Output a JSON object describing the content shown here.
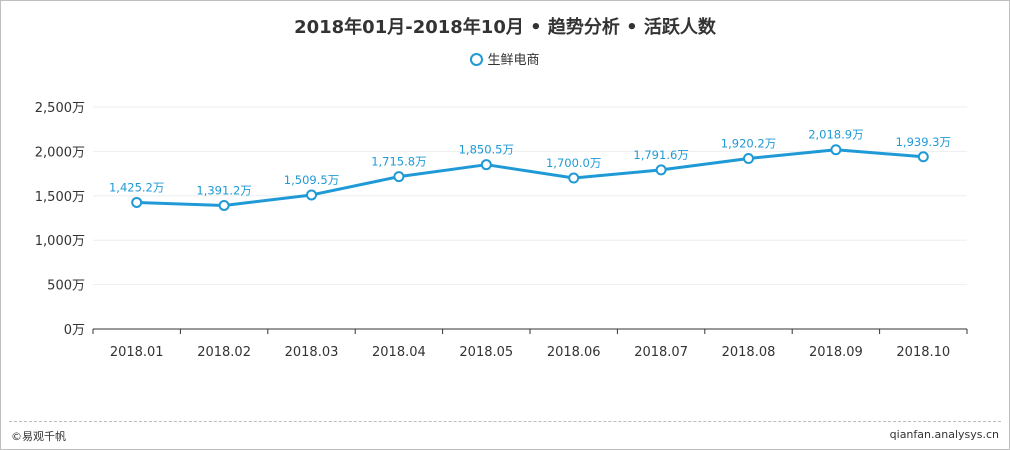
{
  "footer": {
    "left": "©易观千帆",
    "right": "qianfan.analysys.cn"
  },
  "colors": {
    "series": "#1f9ad6",
    "grid": "#eeeeee",
    "axis": "#333333",
    "text": "#333333"
  },
  "chart_data": {
    "type": "line",
    "title": "2018年01月-2018年10月 • 趋势分析 • 活跃人数",
    "xlabel": "",
    "ylabel": "",
    "categories": [
      "2018.01",
      "2018.02",
      "2018.03",
      "2018.04",
      "2018.05",
      "2018.06",
      "2018.07",
      "2018.08",
      "2018.09",
      "2018.10"
    ],
    "series": [
      {
        "name": "生鲜电商",
        "values": [
          1425.2,
          1391.2,
          1509.5,
          1715.8,
          1850.5,
          1700.0,
          1791.6,
          1920.2,
          2018.9,
          1939.3
        ],
        "labels": [
          "1,425.2万",
          "1,391.2万",
          "1,509.5万",
          "1,715.8万",
          "1,850.5万",
          "1,700.0万",
          "1,791.6万",
          "1,920.2万",
          "2,018.9万",
          "1,939.3万"
        ]
      }
    ],
    "ylim": [
      0,
      2500
    ],
    "yticks": [
      0,
      500,
      1000,
      1500,
      2000,
      2500
    ],
    "ytick_labels": [
      "0万",
      "500万",
      "1,000万",
      "1,500万",
      "2,000万",
      "2,500万"
    ],
    "grid": true,
    "legend": "top-center"
  }
}
